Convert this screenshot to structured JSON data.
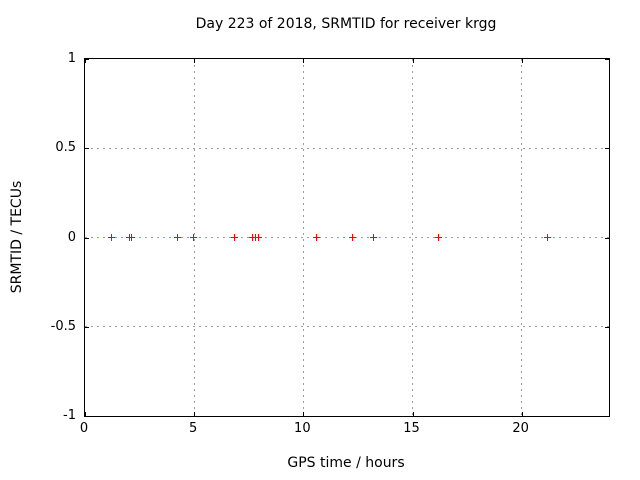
{
  "chart_data": {
    "type": "scatter",
    "title": "Day 223 of 2018, SRMTID for receiver krgg",
    "xlabel": "GPS time / hours",
    "ylabel": "SRMTID / TECUs",
    "xlim": [
      0,
      24
    ],
    "ylim": [
      -1,
      1
    ],
    "xticks": [
      0,
      5,
      10,
      15,
      20
    ],
    "xtick_labels": [
      "0",
      "5",
      "10",
      "15",
      "20"
    ],
    "yticks": [
      -1,
      -0.5,
      0,
      0.5,
      1
    ],
    "ytick_labels": [
      "-1",
      "-0.5",
      "0",
      "0.5",
      "1"
    ],
    "grid": true,
    "grid_style": "dotted",
    "grid_color": "#9c9c9c",
    "legend": false,
    "marker": "plus",
    "marker_color": "#ff0000",
    "background_color": "#ffffff",
    "border_color": "#000000",
    "series": [
      {
        "name": "SRMTID",
        "x": [
          1.2,
          2.05,
          2.15,
          4.25,
          4.95,
          6.85,
          7.65,
          7.8,
          7.95,
          10.6,
          12.25,
          13.2,
          16.2,
          21.2
        ],
        "y": [
          0,
          0,
          0,
          0,
          0,
          0,
          0,
          0,
          0,
          0,
          0,
          0,
          0,
          0
        ]
      }
    ]
  }
}
